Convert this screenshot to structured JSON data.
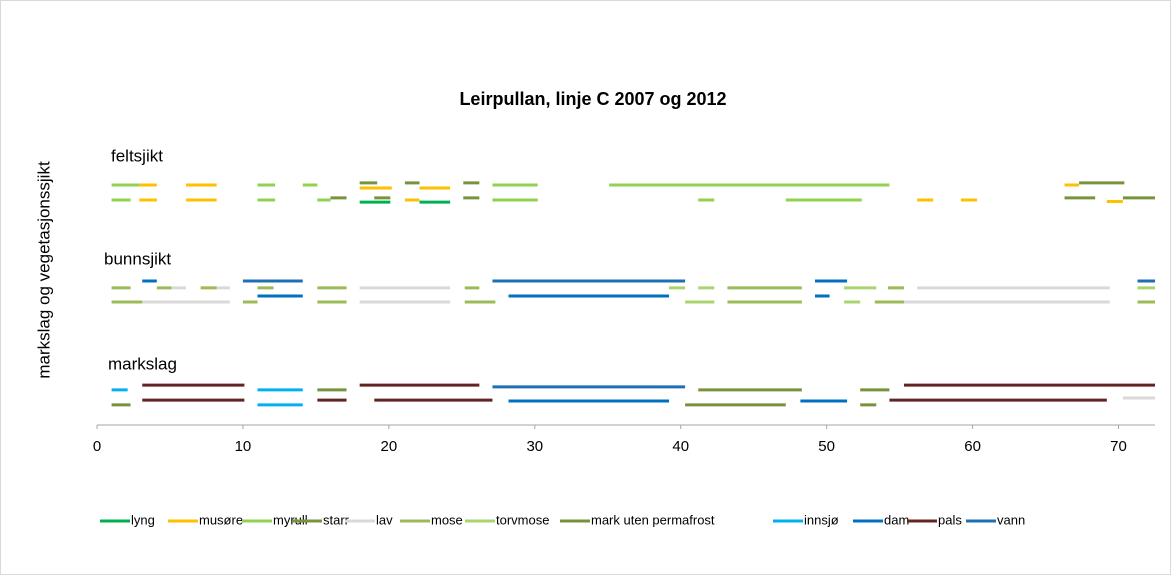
{
  "chart_data": {
    "type": "segments",
    "title": "Leirpullan, linje C 2007 og 2012",
    "y_label": "markslag og vegetasjonssjikt",
    "annotations": [
      "feltsjikt",
      "bunnsjikt",
      "markslag"
    ],
    "xlim": [
      0,
      72.5
    ],
    "xticks": [
      0,
      10,
      20,
      30,
      40,
      50,
      60,
      70
    ],
    "ylim": [
      0,
      10.5
    ],
    "series": [
      {
        "name": "lyng",
        "color": "#00b050",
        "segments": [
          [
            18,
            20.1,
            7.43
          ],
          [
            22.1,
            24.2,
            7.43
          ]
        ]
      },
      {
        "name": "musøre",
        "color": "#ffc000",
        "segments": [
          [
            2.9,
            4.1,
            8
          ],
          [
            6.1,
            8.2,
            8
          ],
          [
            18,
            20.2,
            7.9
          ],
          [
            22.1,
            24.2,
            7.9
          ],
          [
            66.3,
            67.3,
            8
          ],
          [
            2.9,
            4.1,
            7.5
          ],
          [
            6.1,
            8.2,
            7.5
          ],
          [
            21.1,
            22.1,
            7.5
          ],
          [
            56.2,
            57.3,
            7.5
          ],
          [
            59.2,
            60.3,
            7.5
          ],
          [
            69.2,
            70.3,
            7.45
          ]
        ]
      },
      {
        "name": "myrull",
        "color": "#92d050",
        "segments": [
          [
            1,
            2.9,
            8
          ],
          [
            11,
            12.2,
            8
          ],
          [
            14.1,
            15.1,
            8
          ],
          [
            27.1,
            30.2,
            8
          ],
          [
            35.1,
            54.3,
            8
          ],
          [
            1,
            2.3,
            7.5
          ],
          [
            11,
            12.2,
            7.5
          ],
          [
            15.1,
            16,
            7.5
          ],
          [
            27.1,
            30.2,
            7.5
          ],
          [
            41.2,
            42.3,
            7.5
          ],
          [
            47.2,
            52.4,
            7.5
          ]
        ]
      },
      {
        "name": "starr",
        "color": "#77933c",
        "segments": [
          [
            18,
            19.2,
            8.07
          ],
          [
            21.1,
            22.1,
            8.07
          ],
          [
            25.1,
            26.2,
            8.07
          ],
          [
            67.3,
            70.4,
            8.07
          ],
          [
            16,
            17.1,
            7.57
          ],
          [
            19,
            20.1,
            7.57
          ],
          [
            25.1,
            26.2,
            7.57
          ],
          [
            66.3,
            68.4,
            7.57
          ],
          [
            70.3,
            72.5,
            7.57
          ]
        ]
      },
      {
        "name": "lav",
        "color": "#d9d9d9",
        "segments": [
          [
            5.1,
            6.1,
            4.57
          ],
          [
            8.2,
            9.1,
            4.57
          ],
          [
            18,
            24.2,
            4.57
          ],
          [
            56.2,
            69.4,
            4.57
          ],
          [
            3.1,
            9.1,
            4.1
          ],
          [
            18,
            24.2,
            4.1
          ],
          [
            55.3,
            69.4,
            4.1
          ],
          [
            70.3,
            72.5,
            0.9
          ]
        ]
      },
      {
        "name": "mose",
        "color": "#9bbb59",
        "segments": [
          [
            1,
            2.3,
            4.57
          ],
          [
            4.1,
            5.1,
            4.57
          ],
          [
            7.1,
            8.2,
            4.57
          ],
          [
            11,
            12.1,
            4.57
          ],
          [
            15.1,
            17.1,
            4.57
          ],
          [
            25.2,
            26.2,
            4.57
          ],
          [
            43.2,
            48.3,
            4.57
          ],
          [
            54.2,
            55.3,
            4.57
          ],
          [
            1,
            3.1,
            4.1
          ],
          [
            10,
            11,
            4.1
          ],
          [
            15.1,
            17.1,
            4.1
          ],
          [
            25.2,
            27.3,
            4.1
          ],
          [
            43.2,
            48.3,
            4.1
          ],
          [
            53.3,
            55.3,
            4.1
          ],
          [
            71.3,
            72.5,
            4.1
          ]
        ]
      },
      {
        "name": "torvmose",
        "color": "#a9d46f",
        "segments": [
          [
            39.2,
            40.3,
            4.57
          ],
          [
            41.2,
            42.3,
            4.57
          ],
          [
            51.2,
            53.4,
            4.57
          ],
          [
            71.3,
            72.5,
            4.57
          ],
          [
            40.3,
            42.3,
            4.1
          ],
          [
            51.2,
            52.3,
            4.1
          ]
        ]
      },
      {
        "name": "mark uten permafrost",
        "color": "#76923c",
        "segments": [
          [
            15.1,
            17.1,
            1.17
          ],
          [
            41.2,
            48.3,
            1.17
          ],
          [
            52.3,
            54.3,
            1.17
          ],
          [
            1,
            2.3,
            0.67
          ],
          [
            40.3,
            47.2,
            0.67
          ],
          [
            52.3,
            53.4,
            0.67
          ]
        ]
      },
      {
        "name": "innsjø",
        "color": "#00b0f0",
        "segments": [
          [
            1,
            2.1,
            1.17
          ],
          [
            11,
            14.1,
            1.17
          ],
          [
            11,
            14.1,
            0.67
          ]
        ]
      },
      {
        "name": "dam",
        "color": "#0070c0",
        "segments": [
          [
            3.1,
            4.1,
            4.8
          ],
          [
            49.2,
            51.4,
            4.8
          ],
          [
            11,
            14.1,
            4.3
          ],
          [
            28.2,
            39.2,
            4.3
          ],
          [
            49.2,
            50.2,
            4.3
          ],
          [
            28.2,
            39.2,
            0.8
          ],
          [
            48.2,
            51.4,
            0.8
          ]
        ]
      },
      {
        "name": "pals",
        "color": "#632523",
        "segments": [
          [
            3.1,
            10.1,
            1.33
          ],
          [
            18,
            26.2,
            1.33
          ],
          [
            55.3,
            72.5,
            1.33
          ],
          [
            3.1,
            10.1,
            0.83
          ],
          [
            15.1,
            17.1,
            0.83
          ],
          [
            19,
            27.1,
            0.83
          ],
          [
            54.3,
            69.2,
            0.83
          ]
        ]
      },
      {
        "name": "vann",
        "color": "#1f6fb5",
        "segments": [
          [
            10,
            14.1,
            4.8
          ],
          [
            27.1,
            40.3,
            4.8
          ],
          [
            71.3,
            72.5,
            4.8
          ],
          [
            27.1,
            40.3,
            1.27
          ]
        ]
      }
    ]
  }
}
